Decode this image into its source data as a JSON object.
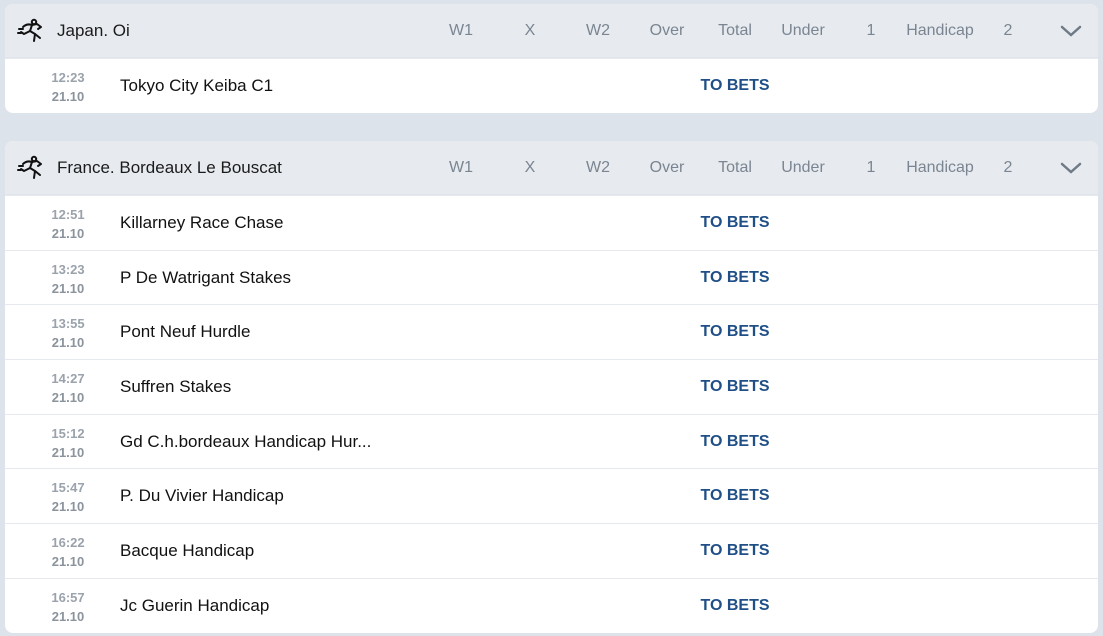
{
  "columns": [
    "W1",
    "X",
    "W2",
    "Over",
    "Total",
    "Under",
    "1",
    "Handicap",
    "2"
  ],
  "leagues": [
    {
      "title": "Japan. Oi",
      "icon": "horse-racing-icon",
      "events": [
        {
          "time": "12:23",
          "date": "21.10",
          "name": "Tokyo City Keiba C1",
          "action": "TO BETS"
        }
      ]
    },
    {
      "title": "France. Bordeaux Le Bouscat",
      "icon": "horse-racing-icon",
      "events": [
        {
          "time": "12:51",
          "date": "21.10",
          "name": "Killarney Race Chase",
          "action": "TO BETS"
        },
        {
          "time": "13:23",
          "date": "21.10",
          "name": "P De Watrigant Stakes",
          "action": "TO BETS"
        },
        {
          "time": "13:55",
          "date": "21.10",
          "name": "Pont Neuf Hurdle",
          "action": "TO BETS"
        },
        {
          "time": "14:27",
          "date": "21.10",
          "name": "Suffren Stakes",
          "action": "TO BETS"
        },
        {
          "time": "15:12",
          "date": "21.10",
          "name": "Gd C.h.bordeaux Handicap Hur...",
          "action": "TO BETS"
        },
        {
          "time": "15:47",
          "date": "21.10",
          "name": "P. Du Vivier Handicap",
          "action": "TO BETS"
        },
        {
          "time": "16:22",
          "date": "21.10",
          "name": "Bacque Handicap",
          "action": "TO BETS"
        },
        {
          "time": "16:57",
          "date": "21.10",
          "name": "Jc Guerin Handicap",
          "action": "TO BETS"
        }
      ]
    }
  ],
  "colors": {
    "background": "#dde3ea",
    "header": "#e7ebf0",
    "link": "#1f4f86"
  }
}
